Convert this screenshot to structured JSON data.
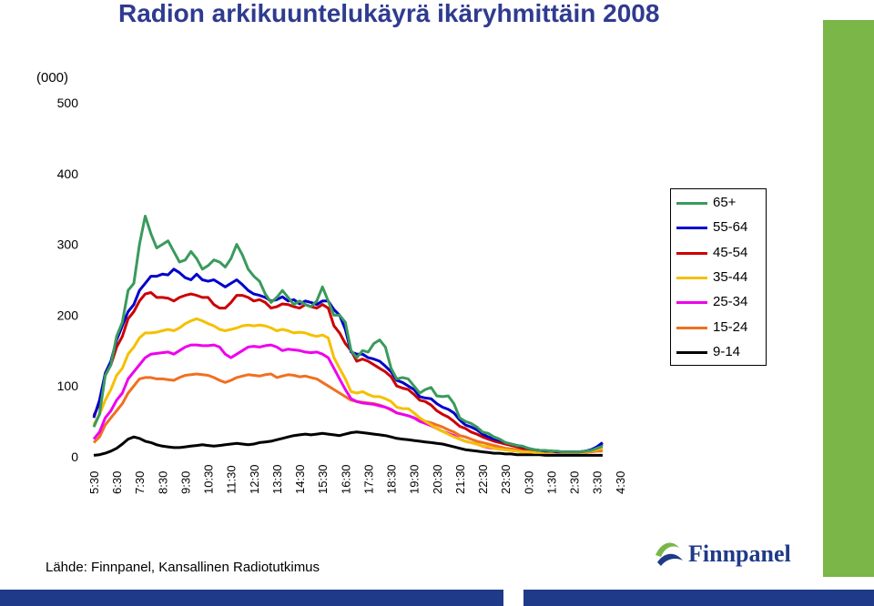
{
  "title": "Radion arkikuuntelukäyrä ikäryhmittäin 2008",
  "unit_label": "(000)",
  "source": "Lähde: Finnpanel, Kansallinen Radiotutkimus",
  "logo_text": "Finnpanel",
  "colors": {
    "brand_green": "#7ab648",
    "brand_blue": "#1f3a88"
  },
  "chart_data": {
    "type": "line",
    "title": "Radion arkikuuntelukäyrä ikäryhmittäin 2008",
    "ylabel": "(000)",
    "ylim": [
      0,
      500
    ],
    "yticks": [
      0,
      100,
      200,
      300,
      400,
      500
    ],
    "x_tick_labels": [
      "5:30",
      "6:30",
      "7:30",
      "8:30",
      "9:30",
      "10:30",
      "11:30",
      "12:30",
      "13:30",
      "14:30",
      "15:30",
      "16:30",
      "17:30",
      "18:30",
      "19:30",
      "20:30",
      "21:30",
      "22:30",
      "23:30",
      "0:30",
      "1:30",
      "2:30",
      "3:30",
      "4:30"
    ],
    "points_per_hour": 4,
    "grid": false,
    "legend_position": "right",
    "series": [
      {
        "name": "65+",
        "color": "#3a9a5c",
        "values": [
          42,
          60,
          115,
          130,
          170,
          190,
          235,
          245,
          300,
          340,
          315,
          295,
          300,
          305,
          290,
          275,
          278,
          290,
          280,
          265,
          270,
          278,
          275,
          268,
          280,
          300,
          285,
          265,
          255,
          248,
          230,
          218,
          225,
          235,
          225,
          215,
          220,
          215,
          212,
          220,
          240,
          220,
          200,
          200,
          190,
          150,
          140,
          150,
          148,
          160,
          165,
          155,
          125,
          110,
          112,
          110,
          100,
          90,
          95,
          98,
          86,
          85,
          86,
          75,
          55,
          50,
          47,
          42,
          35,
          33,
          28,
          25,
          20,
          18,
          16,
          15,
          12,
          10,
          9,
          9,
          8,
          8,
          7,
          7,
          7,
          7,
          8,
          9,
          12,
          15
        ]
      },
      {
        "name": "55-64",
        "color": "#0000cc",
        "values": [
          55,
          80,
          118,
          135,
          165,
          185,
          205,
          215,
          235,
          245,
          255,
          255,
          258,
          257,
          265,
          260,
          253,
          250,
          258,
          250,
          248,
          250,
          245,
          240,
          245,
          250,
          243,
          235,
          230,
          228,
          225,
          220,
          222,
          226,
          220,
          222,
          216,
          220,
          218,
          215,
          220,
          220,
          208,
          200,
          180,
          148,
          145,
          145,
          140,
          138,
          135,
          128,
          120,
          108,
          105,
          100,
          95,
          85,
          83,
          82,
          75,
          70,
          67,
          62,
          52,
          45,
          42,
          38,
          32,
          28,
          25,
          23,
          20,
          18,
          16,
          14,
          12,
          10,
          9,
          8,
          8,
          7,
          7,
          7,
          7,
          7,
          8,
          10,
          14,
          20
        ]
      },
      {
        "name": "45-54",
        "color": "#cc0000",
        "values": [
          58,
          75,
          115,
          130,
          155,
          170,
          195,
          205,
          220,
          230,
          232,
          225,
          225,
          224,
          220,
          225,
          228,
          230,
          228,
          225,
          225,
          215,
          210,
          210,
          218,
          228,
          228,
          225,
          220,
          222,
          218,
          210,
          212,
          216,
          215,
          212,
          210,
          215,
          212,
          210,
          215,
          210,
          185,
          175,
          160,
          150,
          135,
          138,
          135,
          130,
          125,
          120,
          113,
          100,
          97,
          95,
          88,
          80,
          78,
          73,
          65,
          60,
          56,
          50,
          43,
          40,
          35,
          32,
          28,
          25,
          22,
          20,
          18,
          16,
          14,
          12,
          11,
          10,
          9,
          8,
          8,
          7,
          7,
          7,
          7,
          7,
          8,
          10,
          13,
          18
        ]
      },
      {
        "name": "35-44",
        "color": "#f5c000",
        "values": [
          45,
          60,
          80,
          95,
          115,
          125,
          145,
          155,
          168,
          175,
          175,
          176,
          178,
          180,
          178,
          182,
          188,
          192,
          195,
          192,
          188,
          185,
          180,
          178,
          180,
          182,
          185,
          186,
          185,
          186,
          185,
          182,
          178,
          180,
          178,
          175,
          176,
          175,
          172,
          170,
          172,
          168,
          140,
          125,
          110,
          92,
          90,
          92,
          88,
          85,
          85,
          82,
          78,
          70,
          68,
          68,
          62,
          55,
          50,
          45,
          40,
          36,
          32,
          28,
          25,
          22,
          20,
          18,
          15,
          14,
          12,
          11,
          10,
          9,
          8,
          7,
          7,
          6,
          6,
          6,
          6,
          6,
          6,
          6,
          6,
          6,
          7,
          8,
          10,
          12
        ]
      },
      {
        "name": "25-34",
        "color": "#ee00ee",
        "values": [
          25,
          35,
          55,
          65,
          80,
          90,
          110,
          120,
          130,
          140,
          145,
          146,
          147,
          148,
          145,
          150,
          155,
          158,
          158,
          157,
          157,
          158,
          155,
          145,
          140,
          145,
          150,
          155,
          156,
          155,
          157,
          158,
          155,
          150,
          152,
          151,
          150,
          148,
          147,
          148,
          145,
          140,
          125,
          110,
          95,
          82,
          78,
          76,
          75,
          74,
          72,
          70,
          67,
          62,
          60,
          58,
          55,
          50,
          47,
          44,
          40,
          36,
          33,
          30,
          25,
          22,
          20,
          18,
          15,
          13,
          12,
          11,
          10,
          9,
          8,
          7,
          7,
          6,
          6,
          6,
          6,
          6,
          6,
          6,
          6,
          6,
          7,
          8,
          10,
          12
        ]
      },
      {
        "name": "15-24",
        "color": "#f07020",
        "values": [
          20,
          28,
          45,
          55,
          65,
          75,
          90,
          100,
          110,
          112,
          112,
          110,
          110,
          109,
          108,
          112,
          115,
          116,
          117,
          116,
          115,
          112,
          108,
          105,
          108,
          112,
          114,
          116,
          115,
          114,
          116,
          117,
          112,
          114,
          116,
          115,
          113,
          114,
          112,
          110,
          105,
          100,
          95,
          90,
          85,
          80,
          78,
          77,
          76,
          75,
          73,
          70,
          66,
          62,
          60,
          58,
          55,
          52,
          50,
          48,
          45,
          42,
          38,
          35,
          30,
          28,
          25,
          22,
          20,
          18,
          16,
          14,
          12,
          11,
          10,
          9,
          8,
          7,
          6,
          6,
          6,
          6,
          6,
          6,
          6,
          6,
          6,
          7,
          8,
          8
        ]
      },
      {
        "name": "9-14",
        "color": "#000000",
        "values": [
          2,
          3,
          5,
          8,
          12,
          18,
          25,
          28,
          26,
          22,
          20,
          17,
          15,
          14,
          13,
          13,
          14,
          15,
          16,
          17,
          16,
          15,
          16,
          17,
          18,
          19,
          18,
          17,
          18,
          20,
          21,
          22,
          24,
          26,
          28,
          30,
          31,
          32,
          31,
          32,
          33,
          32,
          31,
          30,
          32,
          34,
          35,
          34,
          33,
          32,
          31,
          30,
          28,
          26,
          25,
          24,
          23,
          22,
          21,
          20,
          19,
          18,
          16,
          14,
          12,
          10,
          9,
          8,
          7,
          6,
          5,
          5,
          4,
          4,
          3,
          3,
          3,
          3,
          3,
          2,
          2,
          2,
          2,
          2,
          2,
          2,
          2,
          2,
          2,
          2
        ]
      }
    ]
  }
}
